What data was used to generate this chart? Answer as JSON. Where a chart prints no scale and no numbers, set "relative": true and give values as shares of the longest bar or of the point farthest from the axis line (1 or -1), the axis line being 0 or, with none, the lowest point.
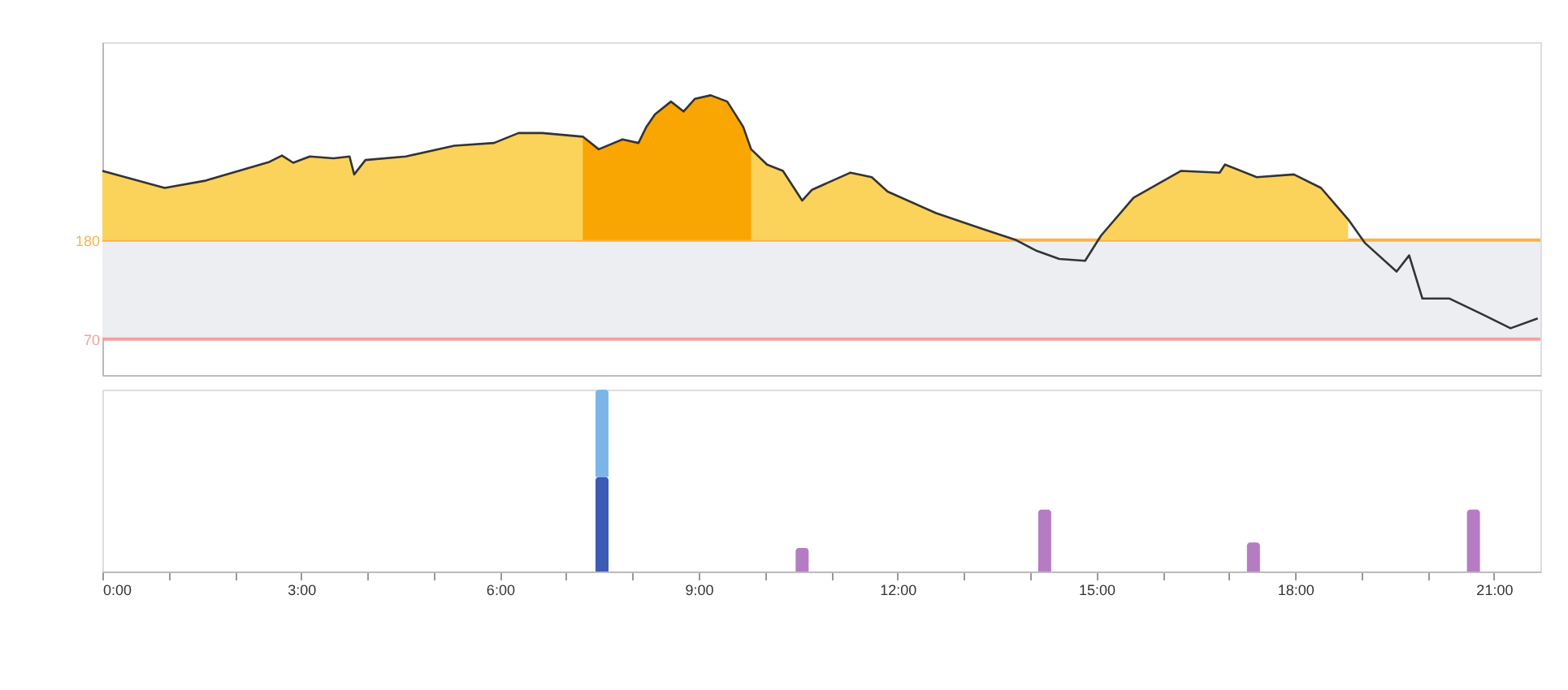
{
  "chart_data": [
    {
      "type": "area",
      "xlim": [
        0,
        21.7
      ],
      "ylim": [
        30,
        400
      ],
      "yticks": [
        70,
        180
      ],
      "tick_labels": "y",
      "grid": false,
      "bands": [
        {
          "axis": "y",
          "from": 70,
          "to": 180,
          "color": "#eceef1"
        }
      ],
      "ref_lines": [
        {
          "axis": "y",
          "value": 180,
          "color": "#f8b34a",
          "line_style": "solid"
        },
        {
          "axis": "y",
          "value": 70,
          "color": "#f7a0a0",
          "line_style": "solid"
        }
      ],
      "series": [
        {
          "type": "line",
          "color": "#333333",
          "x": [
            0.0,
            0.94,
            1.55,
            2.52,
            2.71,
            2.88,
            3.13,
            3.49,
            3.73,
            3.8,
            3.97,
            4.58,
            5.31,
            5.91,
            6.28,
            6.64,
            7.25,
            7.49,
            7.85,
            8.09,
            8.21,
            8.34,
            8.58,
            8.77,
            8.94,
            9.18,
            9.43,
            9.67,
            9.79,
            10.03,
            10.27,
            10.56,
            10.71,
            11.29,
            11.61,
            11.85,
            12.58,
            13.3,
            13.79,
            14.1,
            14.44,
            14.83,
            15.07,
            15.56,
            16.28,
            16.86,
            16.94,
            17.42,
            17.98,
            18.39,
            18.8,
            19.05,
            19.53,
            19.72,
            19.92,
            20.33,
            20.81,
            21.25,
            21.66
          ],
          "values": [
            257,
            238,
            246,
            267,
            274,
            266,
            273,
            271,
            273,
            253,
            269,
            273,
            285,
            288,
            299,
            299,
            295,
            281,
            292,
            288,
            306,
            320,
            334,
            323,
            337,
            341,
            334,
            306,
            281,
            264,
            257,
            224,
            236,
            255,
            250,
            234,
            210,
            192,
            180,
            168,
            159,
            157,
            185,
            227,
            257,
            255,
            264,
            250,
            253,
            238,
            203,
            177,
            145,
            163,
            115,
            115,
            98,
            82,
            93
          ]
        },
        {
          "type": "area",
          "color": "#fcd35a",
          "x": [
            0.0,
            0.94,
            1.55,
            2.52,
            2.71,
            2.88,
            3.13,
            3.49,
            3.73,
            3.8,
            3.97,
            4.58,
            5.31,
            5.91,
            6.28,
            6.64,
            7.25,
            7.49,
            7.85,
            8.09,
            8.21,
            8.34,
            8.58,
            8.77,
            8.94,
            9.18,
            9.43,
            9.67,
            9.79,
            10.03,
            10.27,
            10.56,
            10.71,
            11.29,
            11.61,
            11.85,
            12.58,
            13.3,
            13.79,
            14.1,
            14.44,
            14.83,
            15.07,
            15.56,
            16.28,
            16.86,
            16.94,
            17.42,
            17.98,
            18.39,
            18.8
          ],
          "values": [
            257,
            238,
            246,
            267,
            274,
            266,
            273,
            271,
            273,
            253,
            269,
            273,
            285,
            288,
            299,
            299,
            295,
            281,
            292,
            288,
            306,
            320,
            334,
            323,
            337,
            341,
            334,
            306,
            281,
            264,
            257,
            224,
            236,
            255,
            250,
            234,
            210,
            192,
            180,
            null,
            null,
            null,
            185,
            227,
            257,
            255,
            264,
            250,
            253,
            238,
            203
          ]
        },
        {
          "type": "area",
          "color": "#f9a602",
          "x": [
            7.25,
            7.49,
            7.85,
            8.09,
            8.21,
            8.34,
            8.58,
            8.77,
            8.94,
            9.18,
            9.43,
            9.67,
            9.79
          ],
          "values": [
            295,
            281,
            292,
            288,
            306,
            320,
            334,
            323,
            337,
            341,
            334,
            306,
            281
          ]
        }
      ]
    },
    {
      "type": "bar",
      "relative": true,
      "stacked": true,
      "xlim": [
        0,
        21.7
      ],
      "tick_labels": "x",
      "grid": false,
      "x": [
        7.54,
        10.56,
        14.22,
        17.37,
        20.69
      ],
      "xticks": [
        {
          "value": 0,
          "label": "0:00"
        },
        {
          "value": 1,
          "label": null
        },
        {
          "value": 2,
          "label": null
        },
        {
          "value": 3,
          "label": "3:00"
        },
        {
          "value": 4,
          "label": null
        },
        {
          "value": 5,
          "label": null
        },
        {
          "value": 6,
          "label": "6:00"
        },
        {
          "value": 7,
          "label": null
        },
        {
          "value": 8,
          "label": null
        },
        {
          "value": 9,
          "label": "9:00"
        },
        {
          "value": 10,
          "label": null
        },
        {
          "value": 11,
          "label": null
        },
        {
          "value": 12,
          "label": "12:00"
        },
        {
          "value": 13,
          "label": null
        },
        {
          "value": 14,
          "label": null
        },
        {
          "value": 15,
          "label": "15:00"
        },
        {
          "value": 16,
          "label": null
        },
        {
          "value": 17,
          "label": null
        },
        {
          "value": 18,
          "label": "18:00"
        },
        {
          "value": 19,
          "label": null
        },
        {
          "value": 20,
          "label": null
        },
        {
          "value": 21,
          "label": "21:00"
        }
      ],
      "series": [
        {
          "color": "#3b5bb5",
          "values": [
            0.52,
            null,
            null,
            null,
            null
          ]
        },
        {
          "color": "#7cb6e8",
          "values": [
            0.48,
            null,
            null,
            null,
            null
          ]
        },
        {
          "color": "#b57cc4",
          "values": [
            null,
            0.13,
            0.34,
            0.16,
            0.34
          ]
        }
      ]
    }
  ]
}
